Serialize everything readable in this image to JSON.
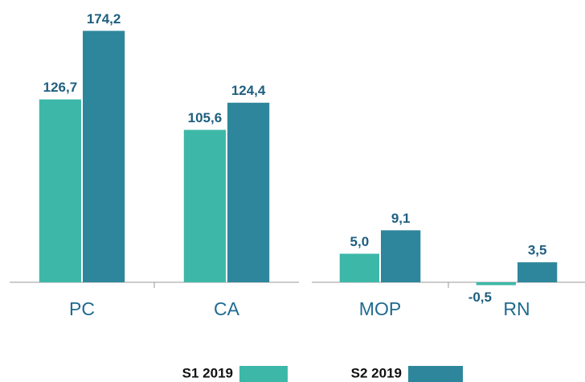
{
  "chart_data": [
    {
      "type": "bar",
      "categories": [
        "PC",
        "CA"
      ],
      "ylim": [
        0,
        190
      ],
      "series": [
        {
          "name": "S1 2019",
          "color": "#3db8a8",
          "values": [
            126.7,
            105.6
          ],
          "value_labels": [
            "126,7",
            "105,6"
          ]
        },
        {
          "name": "S2 2019",
          "color": "#2e869c",
          "values": [
            174.2,
            124.4
          ],
          "value_labels": [
            "174,2",
            "124,4"
          ]
        }
      ]
    },
    {
      "type": "bar",
      "categories": [
        "MOP",
        "RN"
      ],
      "ylim": [
        0,
        48
      ],
      "series": [
        {
          "color": "#3db8a8",
          "values": [
            5.0,
            -0.5
          ],
          "value_labels": [
            "5,0",
            "-0,5"
          ]
        },
        {
          "color": "#2e869c",
          "values": [
            9.1,
            3.5
          ],
          "value_labels": [
            "9,1",
            "3,5"
          ]
        }
      ]
    }
  ]
}
